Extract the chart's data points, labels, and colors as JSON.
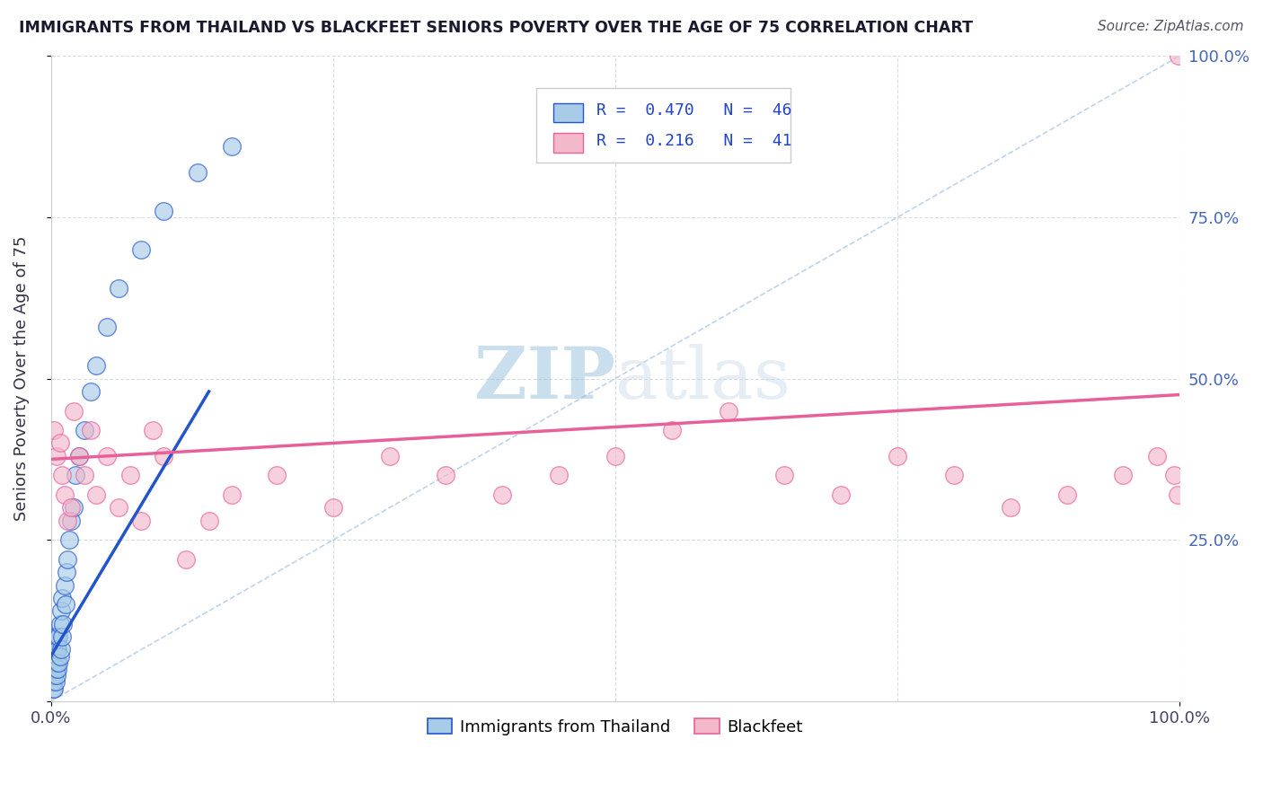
{
  "title": "IMMIGRANTS FROM THAILAND VS BLACKFEET SENIORS POVERTY OVER THE AGE OF 75 CORRELATION CHART",
  "source": "Source: ZipAtlas.com",
  "ylabel": "Seniors Poverty Over the Age of 75",
  "xlim": [
    0.0,
    1.0
  ],
  "ylim": [
    0.0,
    1.0
  ],
  "xtick_vals": [
    0.0,
    1.0
  ],
  "xtick_labels": [
    "0.0%",
    "100.0%"
  ],
  "ytick_vals": [
    0.0,
    0.25,
    0.5,
    0.75,
    1.0
  ],
  "ytick_labels": [
    "",
    "25.0%",
    "50.0%",
    "75.0%",
    "100.0%"
  ],
  "color_blue": "#a8cce8",
  "color_pink": "#f4b8cb",
  "color_line_blue": "#2255cc",
  "color_line_pink": "#e8609a",
  "color_diag": "#b0c8e8",
  "watermark_zip": "ZIP",
  "watermark_atlas": "atlas",
  "background": "#ffffff",
  "grid_color": "#d8dde8",
  "title_color": "#1a1a2e",
  "blue_scatter_x": [
    0.002,
    0.002,
    0.002,
    0.002,
    0.002,
    0.003,
    0.003,
    0.003,
    0.003,
    0.003,
    0.004,
    0.004,
    0.004,
    0.005,
    0.005,
    0.005,
    0.005,
    0.006,
    0.006,
    0.007,
    0.007,
    0.008,
    0.008,
    0.009,
    0.009,
    0.01,
    0.01,
    0.011,
    0.012,
    0.013,
    0.014,
    0.015,
    0.016,
    0.018,
    0.02,
    0.022,
    0.025,
    0.03,
    0.035,
    0.04,
    0.05,
    0.06,
    0.08,
    0.1,
    0.13,
    0.16
  ],
  "blue_scatter_y": [
    0.02,
    0.03,
    0.04,
    0.05,
    0.06,
    0.02,
    0.04,
    0.06,
    0.08,
    0.1,
    0.03,
    0.05,
    0.07,
    0.04,
    0.06,
    0.08,
    0.1,
    0.05,
    0.08,
    0.06,
    0.1,
    0.07,
    0.12,
    0.08,
    0.14,
    0.1,
    0.16,
    0.12,
    0.18,
    0.15,
    0.2,
    0.22,
    0.25,
    0.28,
    0.3,
    0.35,
    0.38,
    0.42,
    0.48,
    0.52,
    0.58,
    0.64,
    0.7,
    0.76,
    0.82,
    0.86
  ],
  "pink_scatter_x": [
    0.003,
    0.005,
    0.008,
    0.01,
    0.012,
    0.015,
    0.018,
    0.02,
    0.025,
    0.03,
    0.035,
    0.04,
    0.05,
    0.06,
    0.07,
    0.08,
    0.09,
    0.1,
    0.12,
    0.14,
    0.16,
    0.2,
    0.25,
    0.3,
    0.35,
    0.4,
    0.45,
    0.5,
    0.55,
    0.6,
    0.65,
    0.7,
    0.75,
    0.8,
    0.85,
    0.9,
    0.95,
    0.98,
    0.995,
    0.998,
    0.999
  ],
  "pink_scatter_y": [
    0.42,
    0.38,
    0.4,
    0.35,
    0.32,
    0.28,
    0.3,
    0.45,
    0.38,
    0.35,
    0.42,
    0.32,
    0.38,
    0.3,
    0.35,
    0.28,
    0.42,
    0.38,
    0.22,
    0.28,
    0.32,
    0.35,
    0.3,
    0.38,
    0.35,
    0.32,
    0.35,
    0.38,
    0.42,
    0.45,
    0.35,
    0.32,
    0.38,
    0.35,
    0.3,
    0.32,
    0.35,
    0.38,
    0.35,
    0.32,
    1.0
  ],
  "blue_line_x0": 0.0,
  "blue_line_y0": 0.07,
  "blue_line_x1": 0.14,
  "blue_line_y1": 0.48,
  "pink_line_x0": 0.0,
  "pink_line_y0": 0.375,
  "pink_line_x1": 1.0,
  "pink_line_y1": 0.475
}
